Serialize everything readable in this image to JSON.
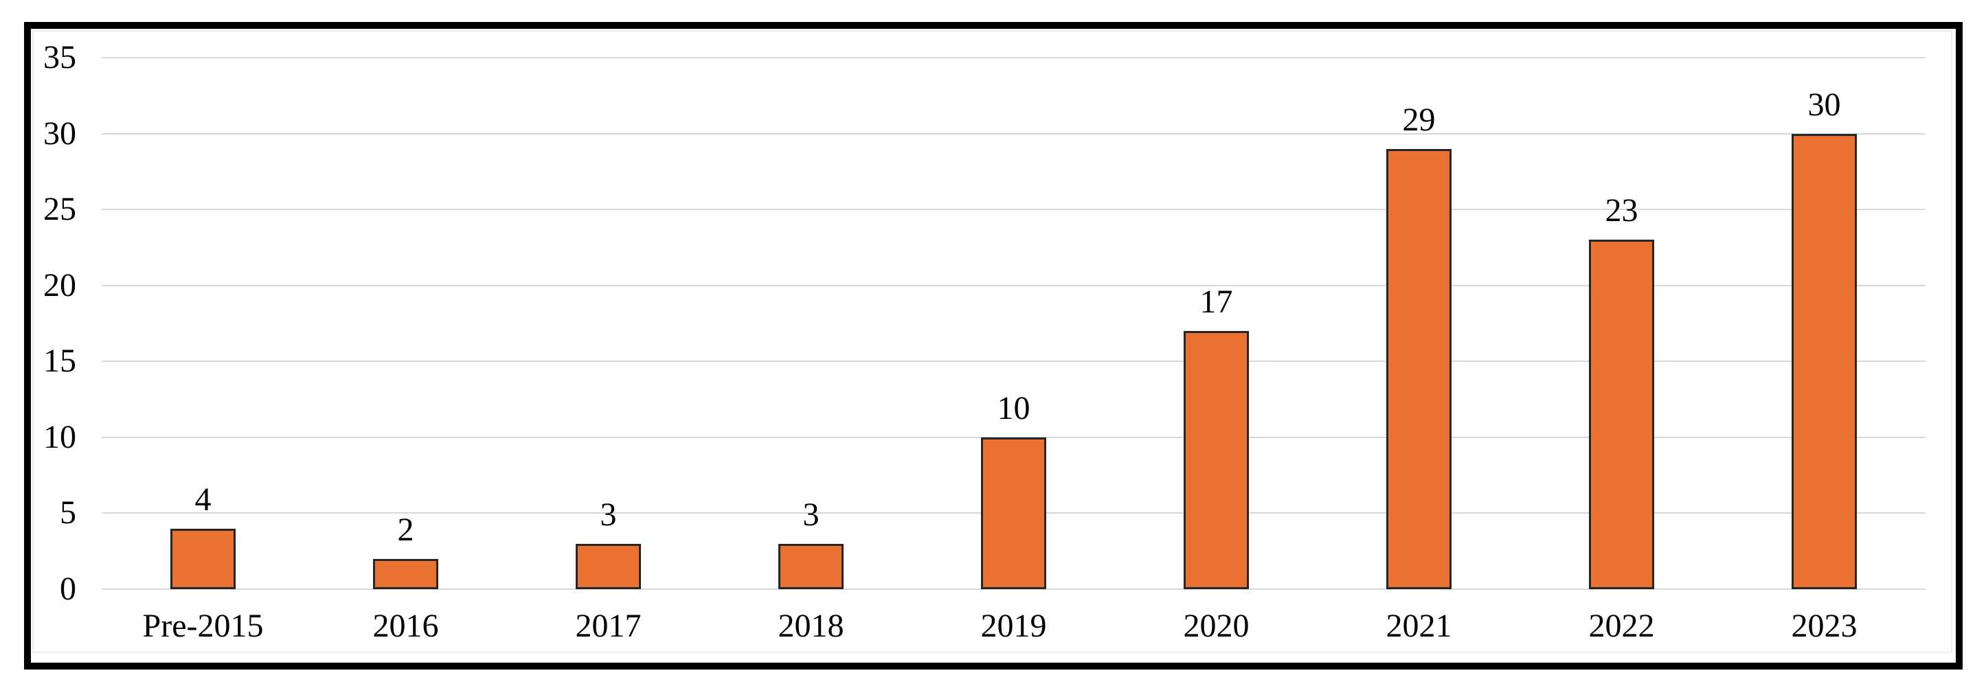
{
  "chart_data": {
    "type": "bar",
    "title": "",
    "xlabel": "",
    "ylabel": "",
    "categories": [
      "Pre-2015",
      "2016",
      "2017",
      "2018",
      "2019",
      "2020",
      "2021",
      "2022",
      "2023"
    ],
    "values": [
      4,
      2,
      3,
      3,
      10,
      17,
      29,
      23,
      30
    ],
    "yticks": [
      0,
      5,
      10,
      15,
      20,
      25,
      30,
      35
    ],
    "ylim": [
      0,
      35
    ],
    "grid": true,
    "legend": "none",
    "data_labels_shown": true,
    "colors": {
      "bar_fill": "#E97132",
      "bar_border": "#262626",
      "gridline": "#D9D9D9",
      "tick_text": "#000000",
      "frame_border": "#000000",
      "background": "#FFFFFF"
    }
  }
}
